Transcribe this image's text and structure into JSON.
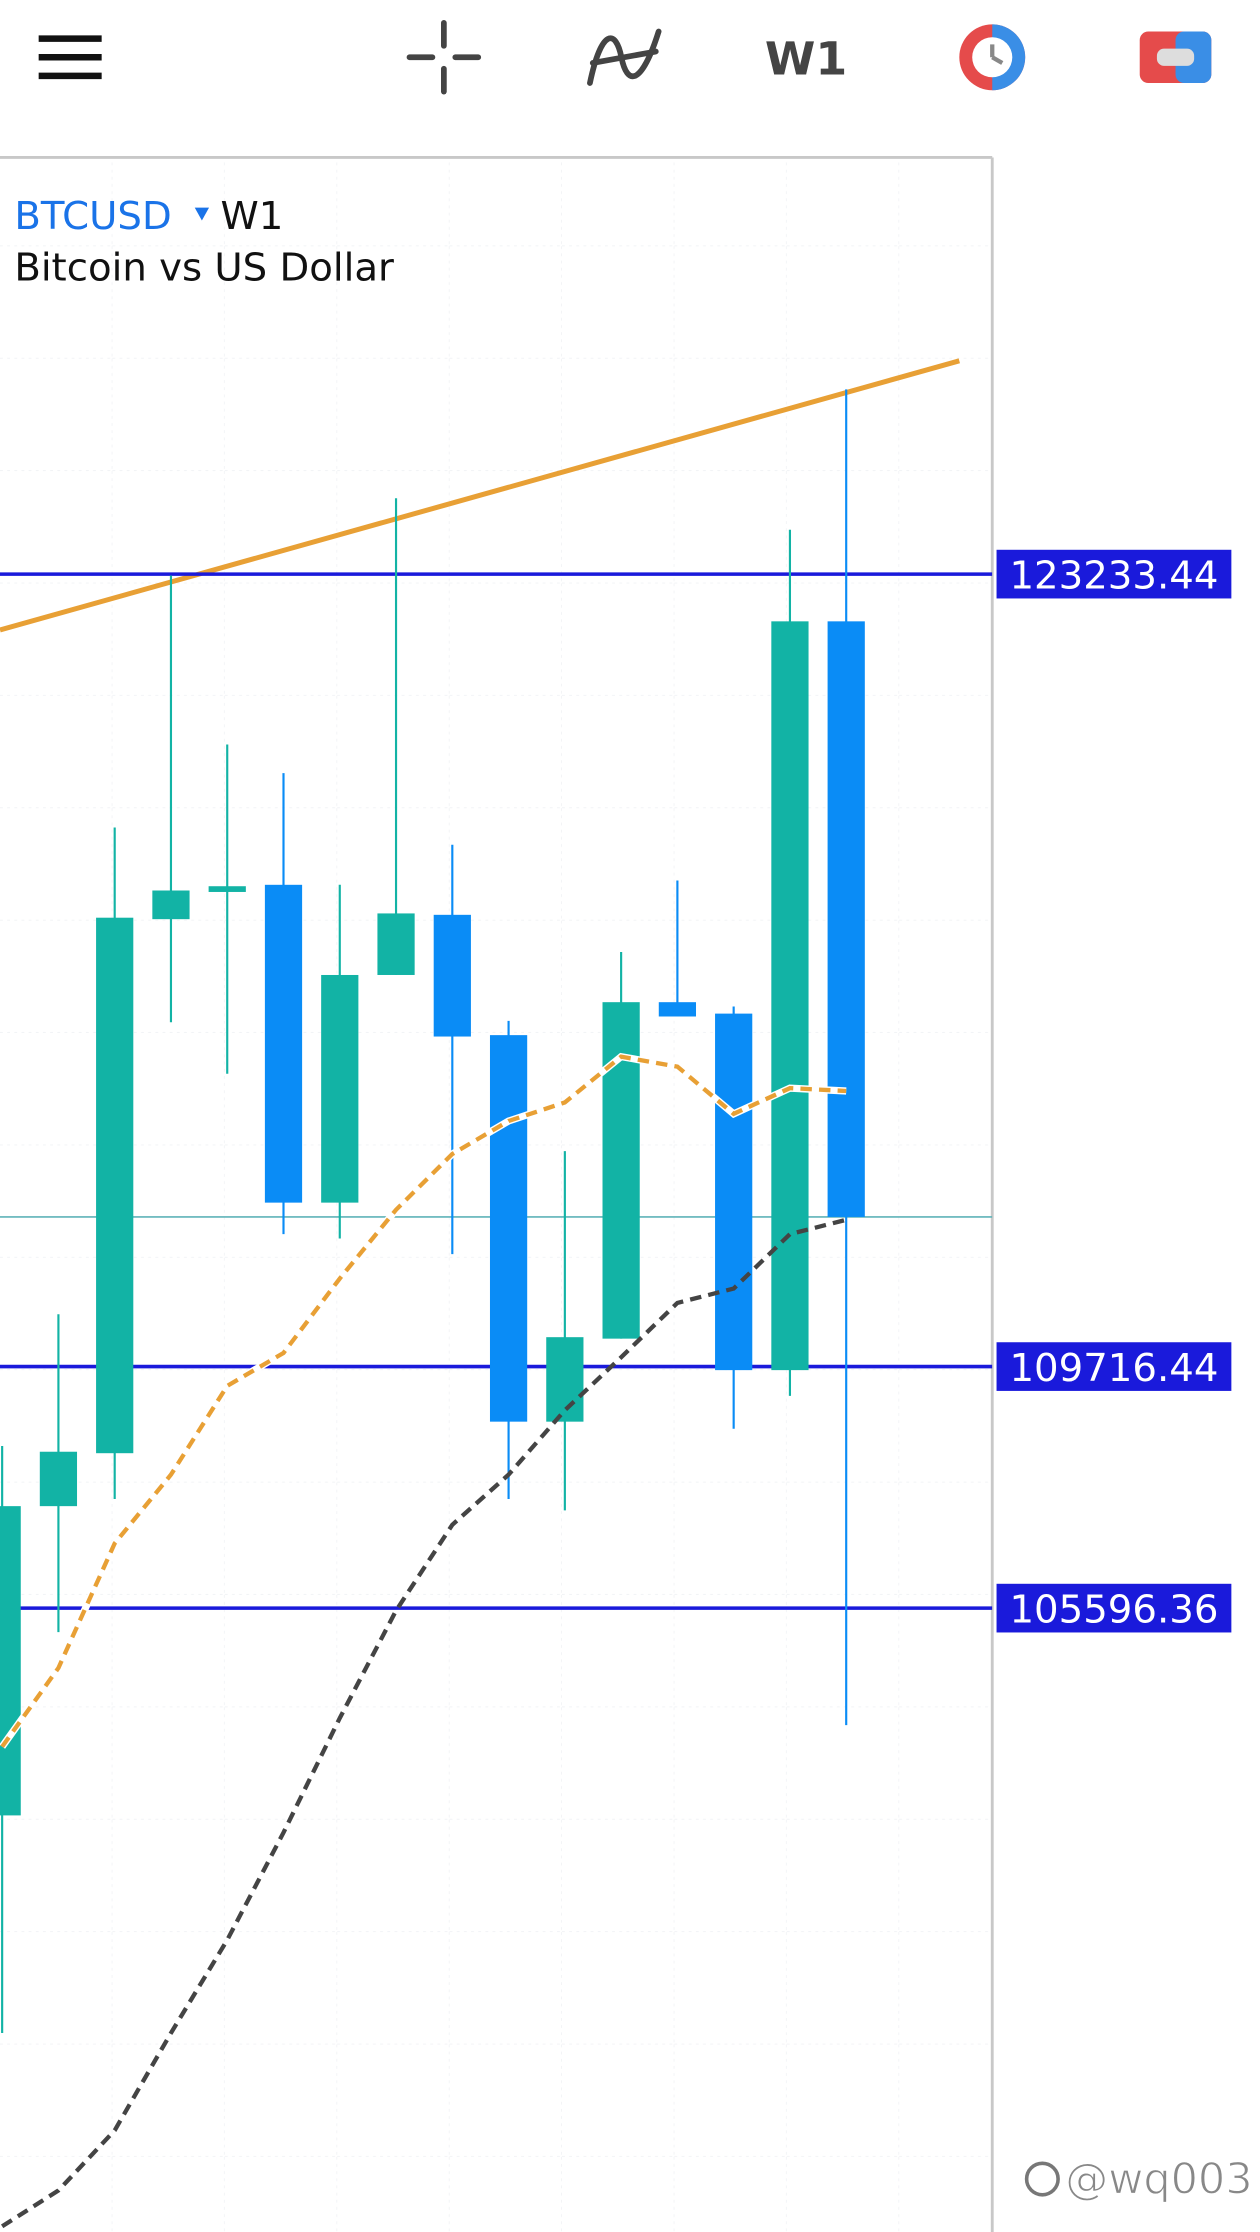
{
  "toolbar": {
    "timeframe": "W1"
  },
  "chart_data": {
    "type": "candlestick",
    "symbol": "BTCUSD",
    "timeframe": "W1",
    "description": "Bitcoin vs US Dollar",
    "ylim": [
      94955,
      130340
    ],
    "open": [
      102061,
      107336,
      108239,
      117348,
      117812,
      117934,
      112513,
      116396,
      117422,
      115370,
      108777,
      110193,
      115932,
      115737,
      109656,
      122428
    ],
    "high": [
      108362,
      110608,
      118911,
      123209,
      120327,
      119839,
      117934,
      124528,
      118618,
      115614,
      113392,
      116787,
      118008,
      115859,
      123990,
      126384
    ],
    "low": [
      98349,
      105187,
      107458,
      115590,
      114711,
      111976,
      111902,
      116396,
      111634,
      107458,
      107263,
      110193,
      115688,
      108655,
      109217,
      103600
    ],
    "close": [
      107336,
      108264,
      117373,
      117837,
      117910,
      112513,
      116396,
      117446,
      115346,
      108777,
      110218,
      115932,
      115688,
      109656,
      122428,
      112269
    ],
    "up_color": "#12b3a5",
    "down_color": "#0a8cf6",
    "moving_averages": [
      {
        "color": "#e8a035",
        "values": [
          103233,
          104576,
          106701,
          107873,
          109387,
          109949,
          111218,
          112391,
          113343,
          113905,
          114222,
          115003,
          114833,
          114027,
          114466,
          114417
        ]
      },
      {
        "color": "#444444",
        "values": [
          95052,
          95663,
          96688,
          98349,
          99936,
          101768,
          103721,
          105553,
          107018,
          107873,
          108972,
          109875,
          110803,
          111047,
          111976,
          112220
        ]
      }
    ],
    "trendline": {
      "color": "#e8a035",
      "values": [
        122281,
        126872
      ]
    },
    "price_levels": [
      123233.44,
      109716.44,
      105596.36
    ],
    "price_level_color": "#1a1adb"
  },
  "watermark": "@wq003"
}
